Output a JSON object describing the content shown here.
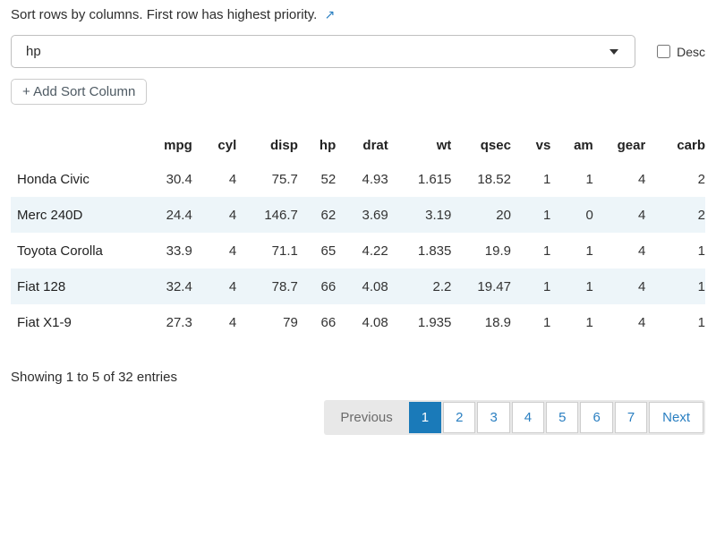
{
  "header": {
    "instruction": "Sort rows by columns. First row has highest priority.",
    "link_icon": "↗"
  },
  "sort_controls": {
    "selected_column": "hp",
    "desc_label": "Desc",
    "desc_checked": false,
    "add_button_label": "+ Add Sort Column"
  },
  "table": {
    "columns": [
      "",
      "mpg",
      "cyl",
      "disp",
      "hp",
      "drat",
      "wt",
      "qsec",
      "vs",
      "am",
      "gear",
      "carb"
    ],
    "rows": [
      [
        "Honda Civic",
        "30.4",
        "4",
        "75.7",
        "52",
        "4.93",
        "1.615",
        "18.52",
        "1",
        "1",
        "4",
        "2"
      ],
      [
        "Merc 240D",
        "24.4",
        "4",
        "146.7",
        "62",
        "3.69",
        "3.19",
        "20",
        "1",
        "0",
        "4",
        "2"
      ],
      [
        "Toyota Corolla",
        "33.9",
        "4",
        "71.1",
        "65",
        "4.22",
        "1.835",
        "19.9",
        "1",
        "1",
        "4",
        "1"
      ],
      [
        "Fiat 128",
        "32.4",
        "4",
        "78.7",
        "66",
        "4.08",
        "2.2",
        "19.47",
        "1",
        "1",
        "4",
        "1"
      ],
      [
        "Fiat X1-9",
        "27.3",
        "4",
        "79",
        "66",
        "4.08",
        "1.935",
        "18.9",
        "1",
        "1",
        "4",
        "1"
      ]
    ]
  },
  "footer": {
    "showing_text": "Showing 1 to 5 of 32 entries",
    "pagination": {
      "previous_label": "Previous",
      "pages": [
        "1",
        "2",
        "3",
        "4",
        "5",
        "6",
        "7"
      ],
      "active_page": "1",
      "next_label": "Next"
    }
  },
  "colors": {
    "accent_blue": "#1a7ab9",
    "link_blue": "#2a7fc1",
    "stripe": "#edf5f9"
  }
}
